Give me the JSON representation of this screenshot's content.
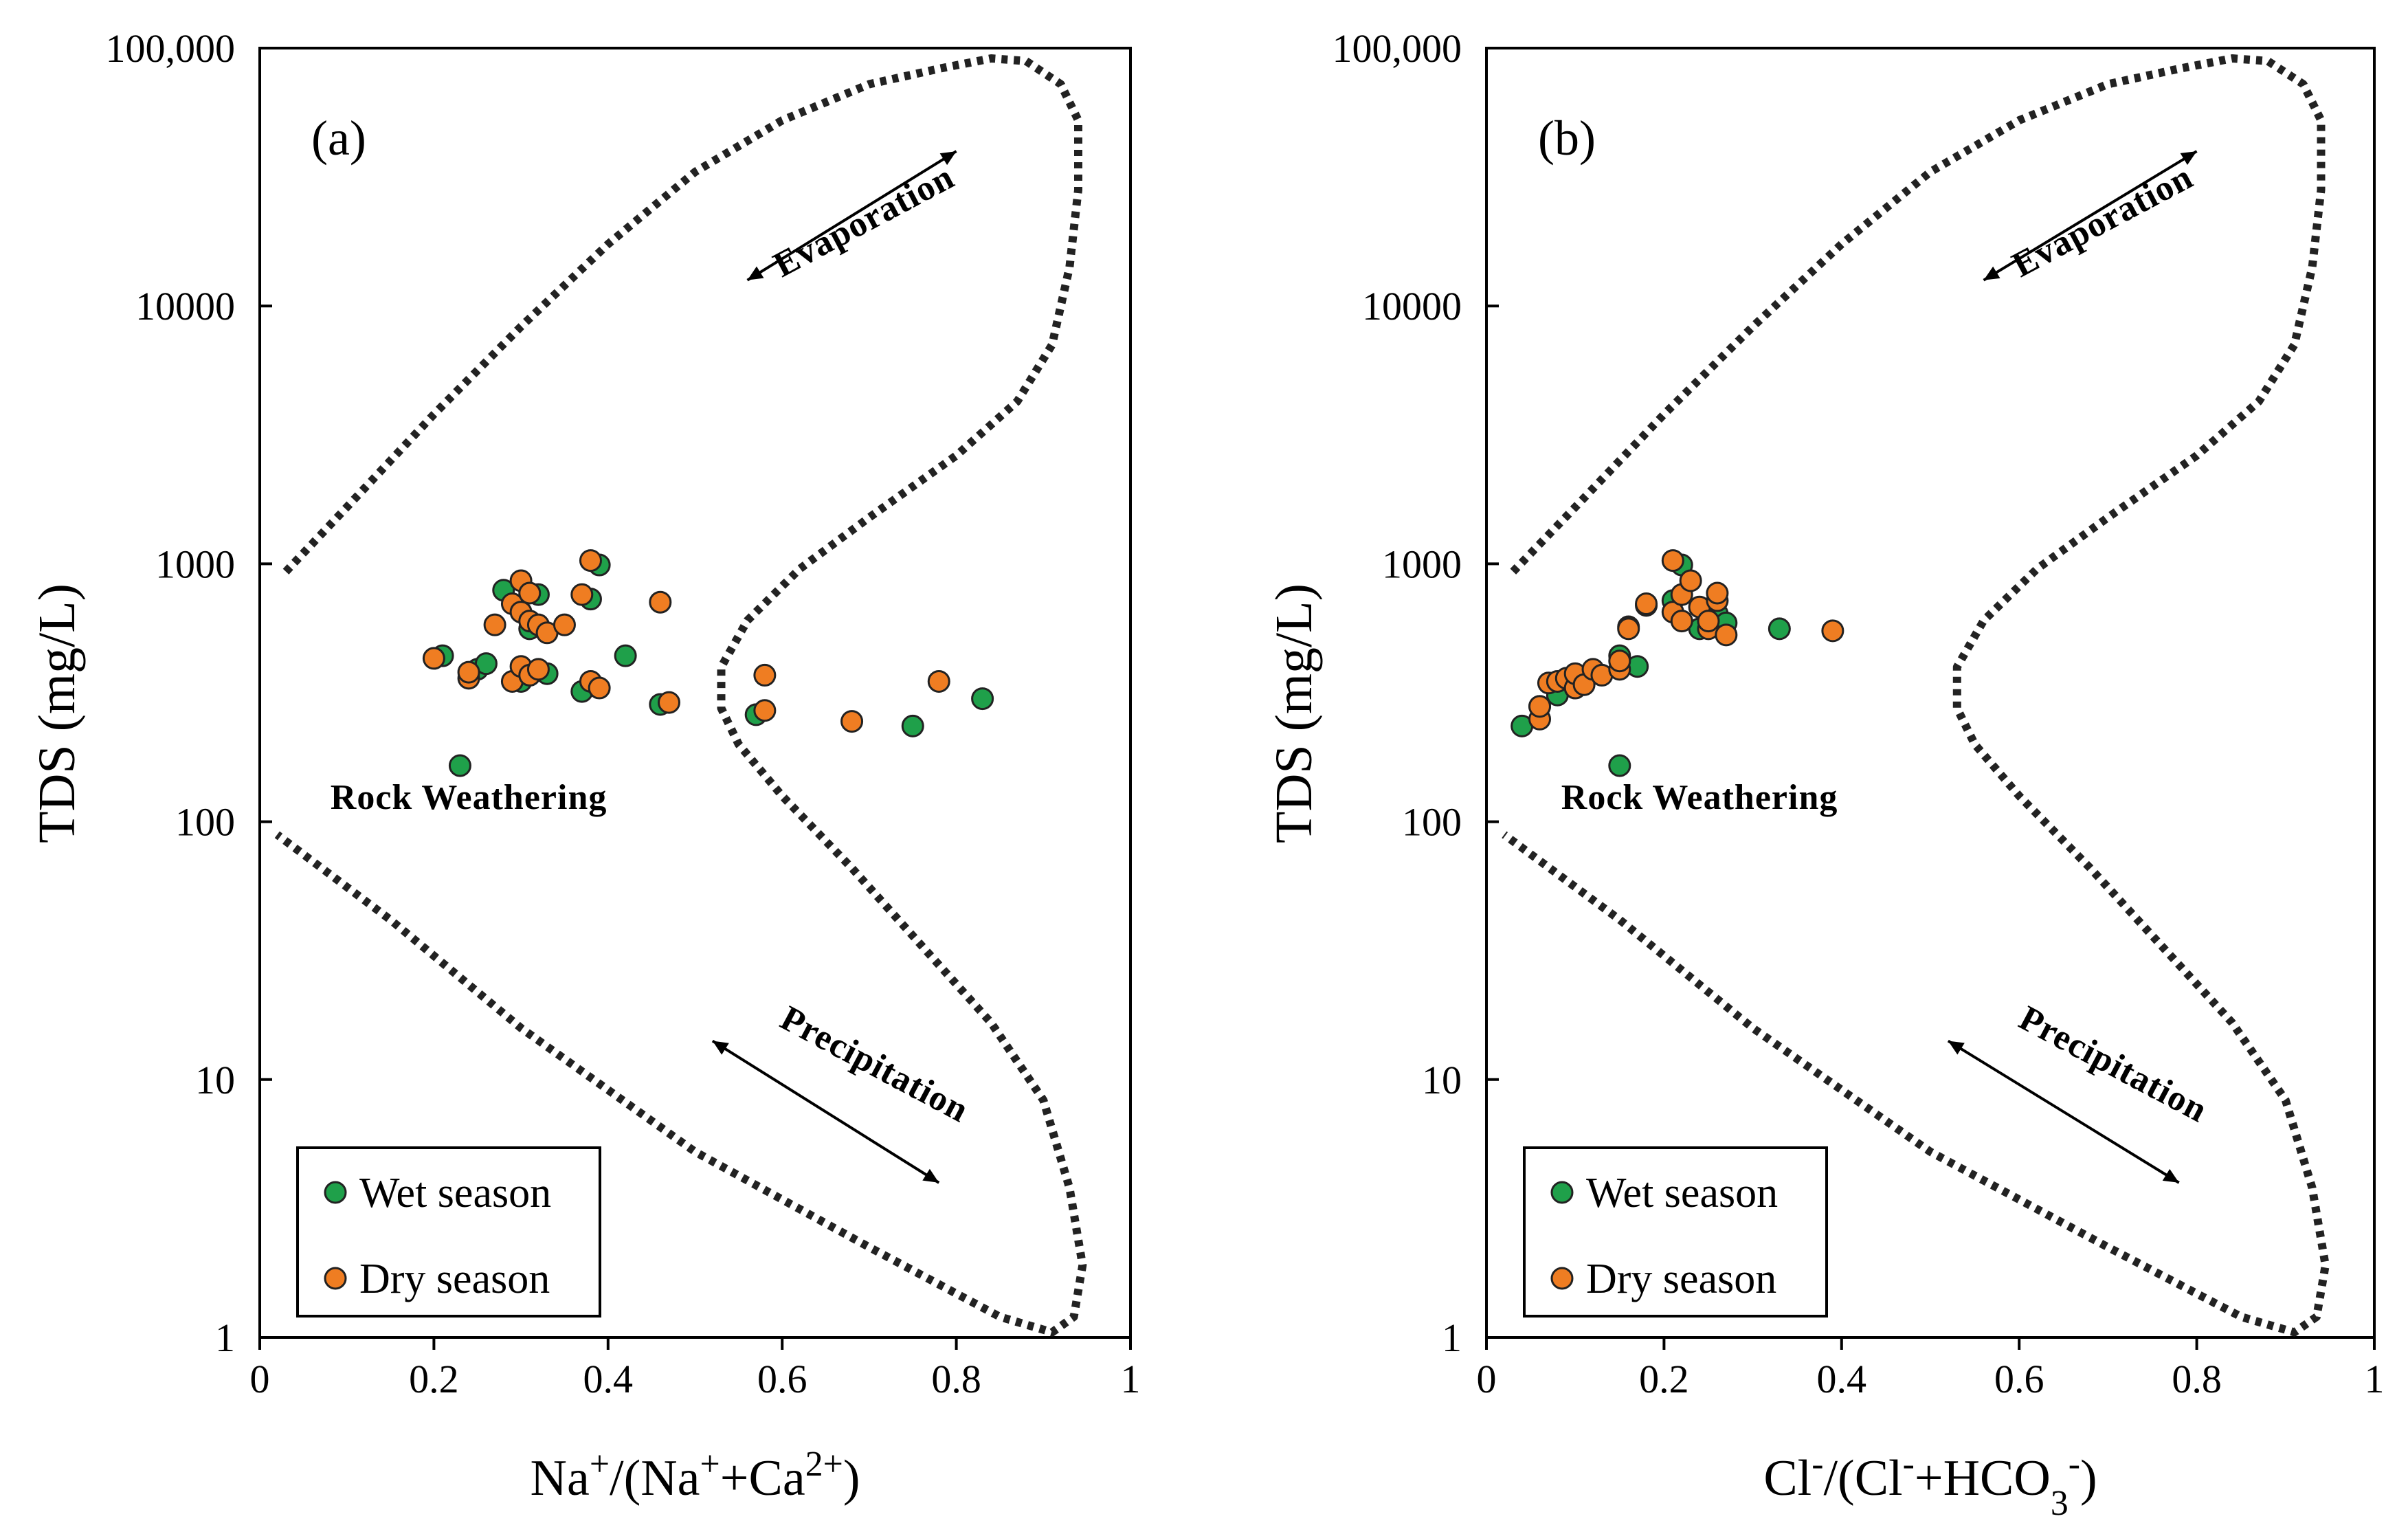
{
  "colors": {
    "wet": "#1fa04a",
    "dry": "#ef7d22",
    "marker_edge": "#222222",
    "boundary": "#222222"
  },
  "chart_data": [
    {
      "type": "scatter",
      "panel_label": "(a)",
      "xlabel_html": "Na<tspan baseline-shift=\"super\" font-size=\"70%\">+</tspan>/(Na<tspan baseline-shift=\"super\" font-size=\"70%\">+</tspan>+Ca<tspan baseline-shift=\"super\" font-size=\"70%\">2+</tspan>)",
      "ylabel": "TDS (mg/L)",
      "xlim": [
        0,
        1
      ],
      "ylim": [
        1,
        100000
      ],
      "yscale": "log",
      "xticks": [
        "0",
        "0.2",
        "0.4",
        "0.6",
        "0.8",
        "1"
      ],
      "xtick_values": [
        0,
        0.2,
        0.4,
        0.6,
        0.8,
        1
      ],
      "yticks": [
        "1",
        "10",
        "100",
        "1000",
        "10000",
        "100,000"
      ],
      "ytick_values": [
        1,
        10,
        100,
        1000,
        10000,
        100000
      ],
      "grid": false,
      "legend_position": "bottom-left",
      "annotations": {
        "evaporation": "Evaporation",
        "precipitation": "Precipitation",
        "rock_weathering": "Rock Weathering"
      },
      "series": [
        {
          "name": "Wet season",
          "color": "#1fa04a",
          "points": [
            [
              0.21,
              440
            ],
            [
              0.23,
              165
            ],
            [
              0.25,
              390
            ],
            [
              0.26,
              410
            ],
            [
              0.28,
              790
            ],
            [
              0.3,
              350
            ],
            [
              0.31,
              560
            ],
            [
              0.32,
              760
            ],
            [
              0.33,
              375
            ],
            [
              0.37,
              320
            ],
            [
              0.38,
              730
            ],
            [
              0.39,
              990
            ],
            [
              0.42,
              440
            ],
            [
              0.46,
              285
            ],
            [
              0.57,
              260
            ],
            [
              0.75,
              235
            ],
            [
              0.83,
              300
            ]
          ]
        },
        {
          "name": "Dry season",
          "color": "#ef7d22",
          "points": [
            [
              0.2,
              430
            ],
            [
              0.24,
              360
            ],
            [
              0.24,
              380
            ],
            [
              0.27,
              580
            ],
            [
              0.29,
              350
            ],
            [
              0.29,
              700
            ],
            [
              0.3,
              860
            ],
            [
              0.3,
              650
            ],
            [
              0.3,
              400
            ],
            [
              0.31,
              770
            ],
            [
              0.31,
              600
            ],
            [
              0.31,
              370
            ],
            [
              0.32,
              580
            ],
            [
              0.32,
              390
            ],
            [
              0.33,
              540
            ],
            [
              0.35,
              580
            ],
            [
              0.37,
              760
            ],
            [
              0.38,
              1030
            ],
            [
              0.38,
              350
            ],
            [
              0.39,
              330
            ],
            [
              0.46,
              710
            ],
            [
              0.47,
              290
            ],
            [
              0.58,
              370
            ],
            [
              0.58,
              270
            ],
            [
              0.68,
              245
            ],
            [
              0.78,
              350
            ]
          ]
        }
      ]
    },
    {
      "type": "scatter",
      "panel_label": "(b)",
      "xlabel_html": "Cl<tspan baseline-shift=\"super\" font-size=\"70%\">-</tspan>/(Cl<tspan baseline-shift=\"super\" font-size=\"70%\">-</tspan>+HCO<tspan baseline-shift=\"sub\" font-size=\"70%\">3</tspan><tspan baseline-shift=\"super\" font-size=\"70%\">-</tspan>)",
      "ylabel": "TDS (mg/L)",
      "xlim": [
        0,
        1
      ],
      "ylim": [
        1,
        100000
      ],
      "yscale": "log",
      "xticks": [
        "0",
        "0.2",
        "0.4",
        "0.6",
        "0.8",
        "1"
      ],
      "xtick_values": [
        0,
        0.2,
        0.4,
        0.6,
        0.8,
        1
      ],
      "yticks": [
        "1",
        "10",
        "100",
        "1000",
        "10000",
        "100,000"
      ],
      "ytick_values": [
        1,
        10,
        100,
        1000,
        10000,
        100000
      ],
      "grid": false,
      "legend_position": "bottom-left",
      "annotations": {
        "evaporation": "Evaporation",
        "precipitation": "Precipitation",
        "rock_weathering": "Rock Weathering"
      },
      "series": [
        {
          "name": "Wet season",
          "color": "#1fa04a",
          "points": [
            [
              0.04,
              235
            ],
            [
              0.06,
              280
            ],
            [
              0.08,
              310
            ],
            [
              0.1,
              330
            ],
            [
              0.15,
              165
            ],
            [
              0.15,
              440
            ],
            [
              0.16,
              570
            ],
            [
              0.17,
              400
            ],
            [
              0.18,
              690
            ],
            [
              0.21,
              720
            ],
            [
              0.22,
              990
            ],
            [
              0.24,
              560
            ],
            [
              0.26,
              640
            ],
            [
              0.27,
              590
            ],
            [
              0.33,
              560
            ]
          ]
        },
        {
          "name": "Dry season",
          "color": "#ef7d22",
          "points": [
            [
              0.06,
              250
            ],
            [
              0.06,
              280
            ],
            [
              0.07,
              345
            ],
            [
              0.08,
              350
            ],
            [
              0.09,
              360
            ],
            [
              0.1,
              330
            ],
            [
              0.1,
              375
            ],
            [
              0.11,
              340
            ],
            [
              0.12,
              390
            ],
            [
              0.13,
              370
            ],
            [
              0.15,
              390
            ],
            [
              0.15,
              420
            ],
            [
              0.16,
              560
            ],
            [
              0.18,
              700
            ],
            [
              0.21,
              650
            ],
            [
              0.21,
              1030
            ],
            [
              0.22,
              760
            ],
            [
              0.22,
              600
            ],
            [
              0.23,
              860
            ],
            [
              0.24,
              680
            ],
            [
              0.25,
              560
            ],
            [
              0.25,
              600
            ],
            [
              0.26,
              720
            ],
            [
              0.26,
              770
            ],
            [
              0.27,
              530
            ],
            [
              0.39,
              550
            ]
          ]
        }
      ]
    }
  ]
}
